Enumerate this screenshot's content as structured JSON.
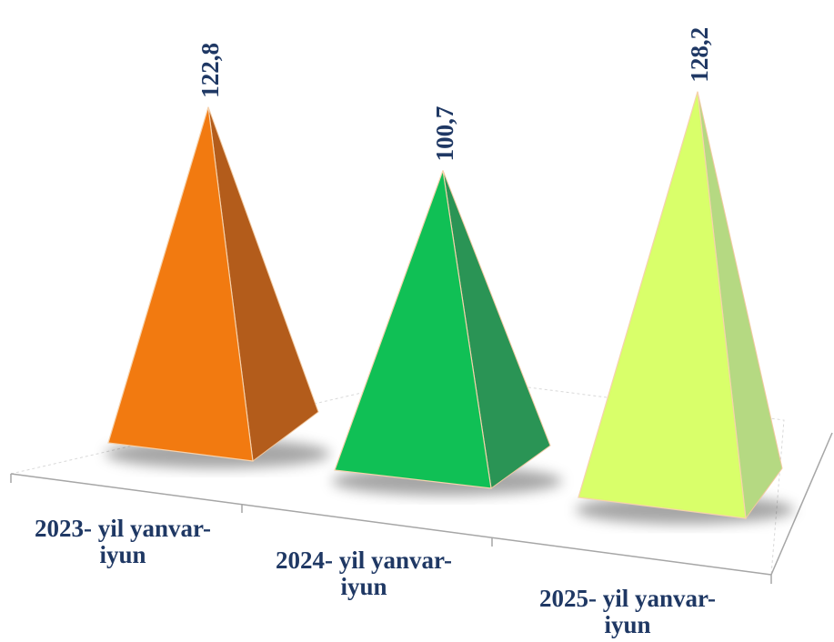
{
  "chart_data": {
    "type": "bar",
    "style": "3d-pyramid",
    "categories": [
      [
        "2023- yil yanvar-",
        "iyun"
      ],
      [
        "2024- yil yanvar-",
        "iyun"
      ],
      [
        "2025- yil yanvar-",
        "iyun"
      ]
    ],
    "values": [
      122.8,
      100.7,
      128.2
    ],
    "value_labels": [
      "122,8",
      "100,7",
      "128,2"
    ],
    "colors": [
      "#f27a10",
      "#10c055",
      "#d9ff6a"
    ],
    "side_colors": [
      "#b35c1b",
      "#2a9455",
      "#b5d982"
    ],
    "label_color": "#1f3864",
    "title": "",
    "xlabel": "",
    "ylabel": "",
    "grid": false,
    "legend": "none"
  }
}
